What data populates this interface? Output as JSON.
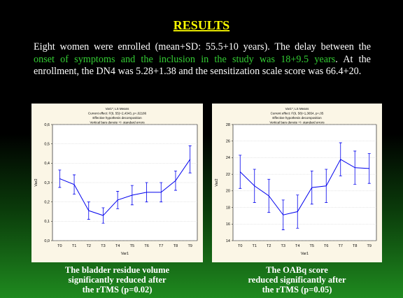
{
  "slide": {
    "title": "RESULTS",
    "body": [
      "Eight women were enrolled (mean+SD: 55.5+10 years). The delay between the ",
      "onset of symptoms and the inclusion in the study was 18+9.5 years",
      ". At the enrollment, the DN4 was 5.28+1.38 and the sensitization scale score was 66.4+20."
    ]
  },
  "chart_data": [
    {
      "type": "line",
      "title": [
        "Var1*; LS Means",
        "Current effect: F(9, 55)=2,4343, p=,02186",
        "Effective hypothesis decomposition",
        "Vertical bars denote +/- standard errors"
      ],
      "x_label": "Var1",
      "y_label": "Var2",
      "color": "#0000ee",
      "categories": [
        "T0",
        "T1",
        "T2",
        "T3",
        "T4",
        "T5",
        "T6",
        "T7",
        "T8",
        "T9"
      ],
      "values": [
        0.32,
        0.29,
        0.155,
        0.13,
        0.21,
        0.235,
        0.25,
        0.25,
        0.31,
        0.42
      ],
      "errors": [
        0.045,
        0.05,
        0.045,
        0.04,
        0.045,
        0.05,
        0.05,
        0.05,
        0.05,
        0.07
      ],
      "ylim": [
        0,
        0.6
      ],
      "yticks": [
        {
          "value": 0,
          "label": "0,0"
        },
        {
          "value": 0.1,
          "label": "0,1"
        },
        {
          "value": 0.2,
          "label": "0,2"
        },
        {
          "value": 0.3,
          "label": "0,3"
        },
        {
          "value": 0.4,
          "label": "0,4"
        },
        {
          "value": 0.5,
          "label": "0,5"
        },
        {
          "value": 0.6,
          "label": "0,6"
        }
      ],
      "grid": true
    },
    {
      "type": "line",
      "title": [
        "Var1*; LS Means",
        "Current effect: F(9, 58)=1,3654, p=,05",
        "Effective hypothesis decomposition",
        "Vertical bars denote +/- standard errors"
      ],
      "x_label": "Var1",
      "y_label": "Var2",
      "color": "#0000ee",
      "categories": [
        "T0",
        "T1",
        "T2",
        "T3",
        "T4",
        "T5",
        "T6",
        "T7",
        "T8",
        "T9"
      ],
      "values": [
        22.3,
        20.6,
        19.4,
        17.1,
        17.5,
        20.4,
        20.6,
        23.8,
        22.8,
        22.7
      ],
      "errors": [
        2,
        2,
        2,
        1.8,
        2,
        2,
        2,
        2,
        2,
        1.8
      ],
      "ylim": [
        14,
        28
      ],
      "yticks": [
        14,
        16,
        18,
        20,
        22,
        24,
        26,
        28
      ],
      "grid": true
    }
  ],
  "captions": [
    [
      "The bladder residue volume",
      "significantly reduced after",
      "the rTMS (p=0.02)"
    ],
    [
      "The OABq score",
      "reduced significantly after",
      "the rTMS (p=0.05)"
    ]
  ]
}
